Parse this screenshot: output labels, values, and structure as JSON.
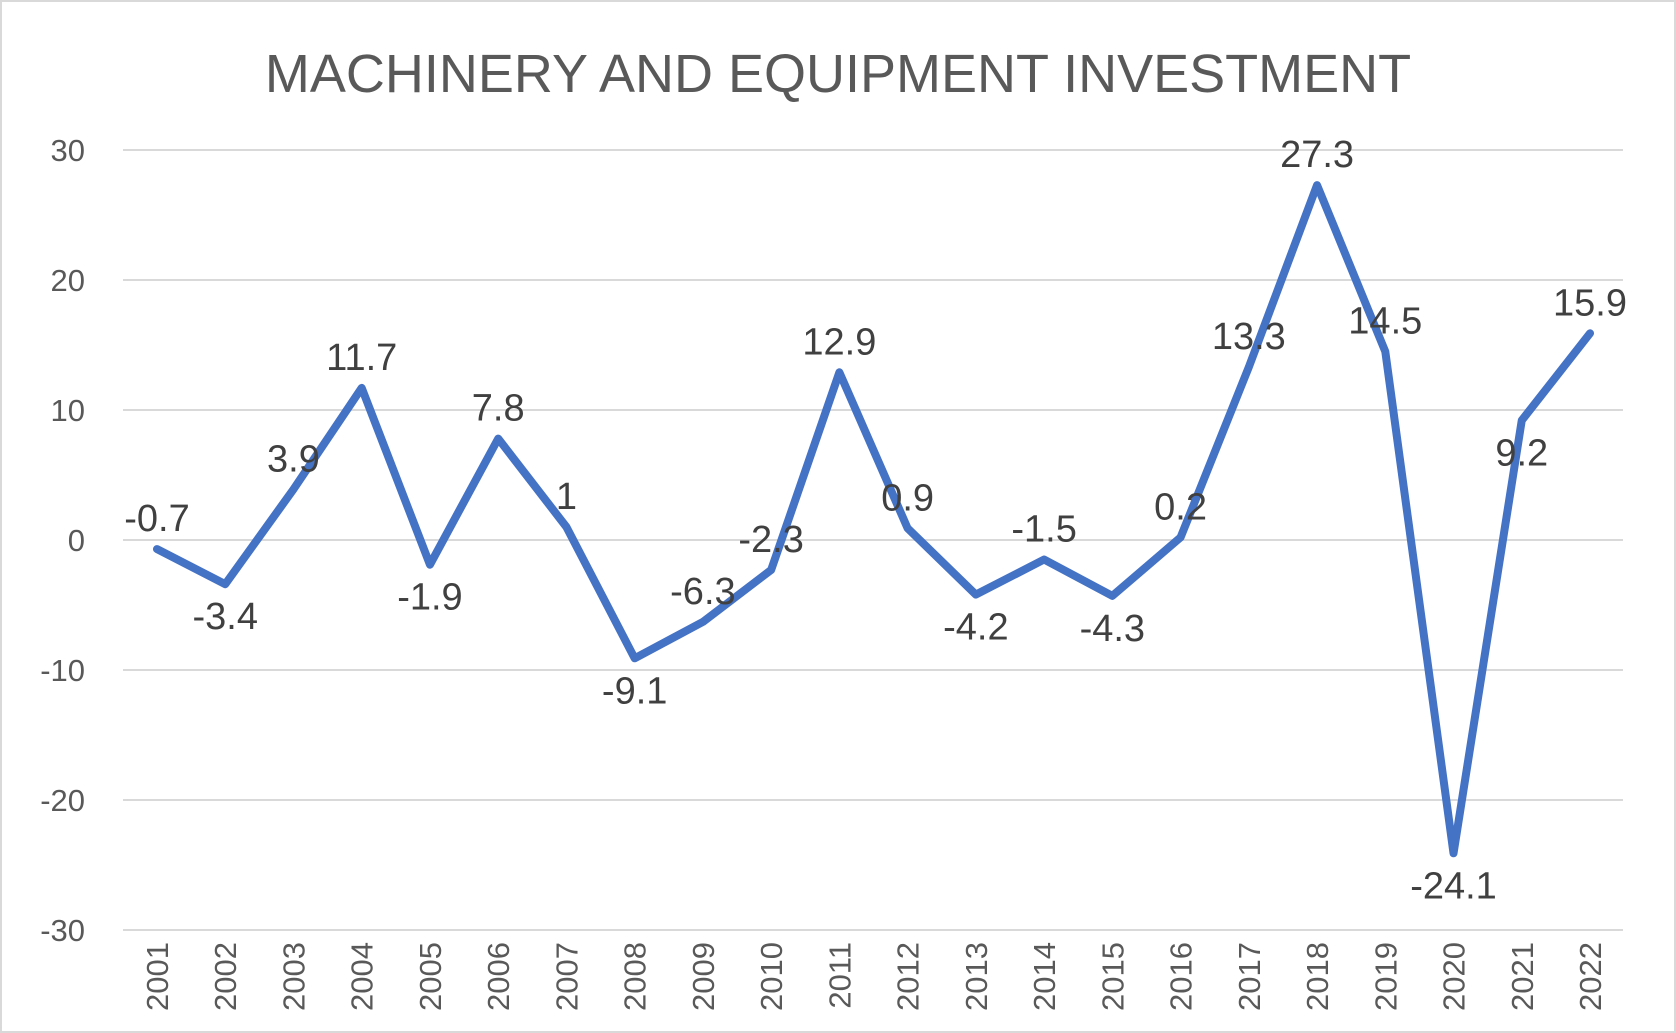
{
  "chart_data": {
    "type": "line",
    "title": "MACHINERY AND EQUIPMENT INVESTMENT",
    "xlabel": "",
    "ylabel": "",
    "categories": [
      "2001",
      "2002",
      "2003",
      "2004",
      "2005",
      "2006",
      "2007",
      "2008",
      "2009",
      "2010",
      "2011",
      "2012",
      "2013",
      "2014",
      "2015",
      "2016",
      "2017",
      "2018",
      "2019",
      "2020",
      "2021",
      "2022"
    ],
    "series": [
      {
        "values": [
          -0.7,
          -3.4,
          3.9,
          11.7,
          -1.9,
          7.8,
          1,
          -9.1,
          -6.3,
          -2.3,
          12.9,
          0.9,
          -4.2,
          -1.5,
          -4.3,
          0.2,
          13.3,
          27.3,
          14.5,
          -24.1,
          9.2,
          15.9
        ]
      }
    ],
    "data_labels": [
      "-0.7",
      "-3.4",
      "3.9",
      "11.7",
      "-1.9",
      "7.8",
      "1",
      "-9.1",
      "-6.3",
      "-2.3",
      "12.9",
      "0.9",
      "-4.2",
      "-1.5",
      "-4.3",
      "0.2",
      "13.3",
      "27.3",
      "14.5",
      "-24.1",
      "9.2",
      "15.9"
    ],
    "ylim": [
      -30,
      30
    ],
    "yticks": [
      "30",
      "20",
      "10",
      "0",
      "-10",
      "-20",
      "-30"
    ],
    "grid": true,
    "legend": "none",
    "colors": {
      "line": "#4472C4",
      "grid": "#D9D9D9",
      "text": "#595959",
      "label": "#404040"
    }
  }
}
